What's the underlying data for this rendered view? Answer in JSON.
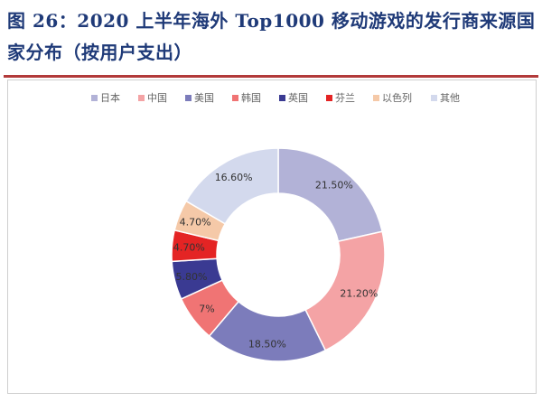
{
  "header": {
    "title": "图 26：2020 上半年海外 Top1000 移动游戏的发行商来源国家分布（按用户支出）"
  },
  "chart_data": {
    "type": "pie",
    "title": "",
    "categories": [
      "日本",
      "中国",
      "美国",
      "韩国",
      "英国",
      "芬兰",
      "以色列",
      "其他"
    ],
    "values": [
      21.5,
      21.2,
      18.5,
      7.0,
      5.8,
      4.7,
      4.7,
      16.6
    ],
    "value_labels": [
      "21.50%",
      "21.20%",
      "18.50%",
      "7%",
      "5.80%",
      "4.70%",
      "4.70%",
      "16.60%"
    ],
    "colors": [
      "#b2b2d7",
      "#f4a3a5",
      "#7c7cbb",
      "#f07474",
      "#3a3a92",
      "#e42424",
      "#f5c9a8",
      "#d3d9ed"
    ],
    "legend_position": "top",
    "donut": true
  }
}
